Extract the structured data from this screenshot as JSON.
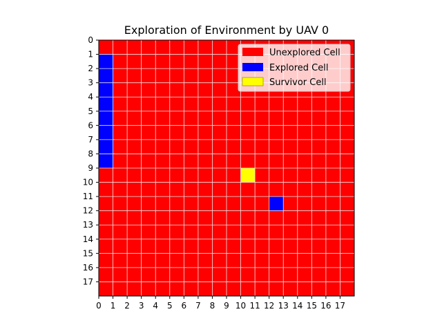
{
  "chart_data": {
    "type": "heatmap",
    "title": "Exploration of Environment by UAV 0",
    "xlabel": "",
    "ylabel": "",
    "grid_size": 18,
    "x_ticks": [
      "0",
      "1",
      "2",
      "3",
      "4",
      "5",
      "6",
      "7",
      "8",
      "9",
      "10",
      "11",
      "12",
      "13",
      "14",
      "15",
      "16",
      "17"
    ],
    "y_ticks": [
      "0",
      "1",
      "2",
      "3",
      "4",
      "5",
      "6",
      "7",
      "8",
      "9",
      "10",
      "11",
      "12",
      "13",
      "14",
      "15",
      "16",
      "17"
    ],
    "grid": true,
    "legend_position": "top-right",
    "legend": [
      {
        "label": "Unexplored Cell",
        "color": "#ff0000"
      },
      {
        "label": "Explored Cell",
        "color": "#0000ff"
      },
      {
        "label": "Survivor Cell",
        "color": "#ffff00"
      }
    ],
    "default_state": "unexplored",
    "explored_cells": [
      [
        0,
        1
      ],
      [
        0,
        2
      ],
      [
        0,
        3
      ],
      [
        0,
        4
      ],
      [
        0,
        5
      ],
      [
        0,
        6
      ],
      [
        0,
        7
      ],
      [
        0,
        8
      ],
      [
        12,
        11
      ]
    ],
    "survivor_cells": [
      [
        10,
        9
      ]
    ]
  }
}
